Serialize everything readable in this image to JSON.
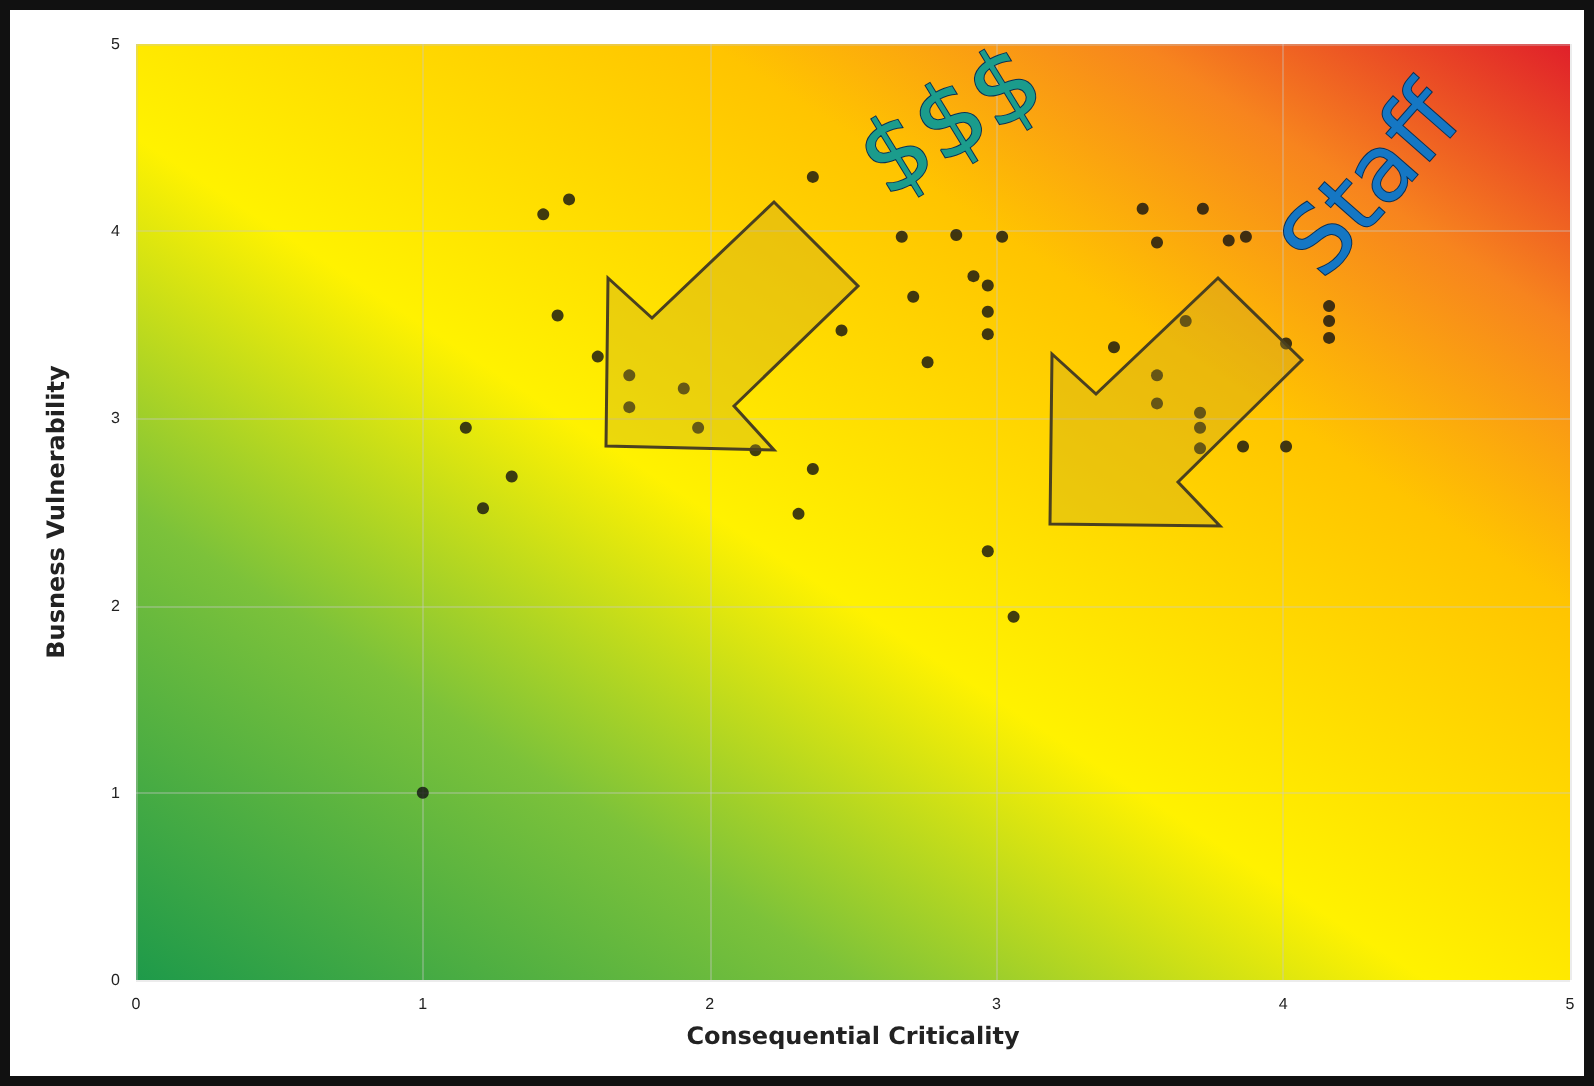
{
  "chart_data": {
    "type": "scatter",
    "xlabel": "Consequential Criticality",
    "ylabel": "Busness Vulnerability",
    "xlim": [
      0,
      5
    ],
    "ylim": [
      0,
      5
    ],
    "xticks": [
      0,
      1,
      2,
      3,
      4,
      5
    ],
    "yticks": [
      0,
      1,
      2,
      3,
      4,
      5
    ],
    "grid": true,
    "marker": "circle",
    "annotations": [
      "$$$",
      "Staff"
    ],
    "series": [
      {
        "color": "#111111",
        "x": [
          1.0,
          1.15,
          1.21,
          1.31,
          1.42,
          1.51,
          1.47,
          1.61,
          1.72,
          1.72,
          1.91,
          1.96,
          2.16,
          2.31,
          2.36,
          2.36,
          2.46,
          2.67,
          2.86,
          3.02,
          2.92,
          2.97,
          2.71,
          2.97,
          2.97,
          2.76,
          2.97,
          3.06,
          3.51,
          3.72,
          3.56,
          3.81,
          3.87,
          3.66,
          3.41,
          4.01,
          3.56,
          3.56,
          3.71,
          3.71,
          3.71,
          3.86,
          4.01,
          4.16,
          4.16,
          4.16
        ],
        "values": [
          1.0,
          2.95,
          2.52,
          2.69,
          4.09,
          4.17,
          3.55,
          3.33,
          3.23,
          3.06,
          3.16,
          2.95,
          2.83,
          2.49,
          2.73,
          4.29,
          3.47,
          3.97,
          3.98,
          3.97,
          3.76,
          3.71,
          3.65,
          3.57,
          3.45,
          3.3,
          2.29,
          1.94,
          4.12,
          4.12,
          3.94,
          3.95,
          3.97,
          3.52,
          3.38,
          3.4,
          3.23,
          3.08,
          3.03,
          2.95,
          2.84,
          2.85,
          2.85,
          3.6,
          3.52,
          3.43
        ]
      }
    ]
  }
}
